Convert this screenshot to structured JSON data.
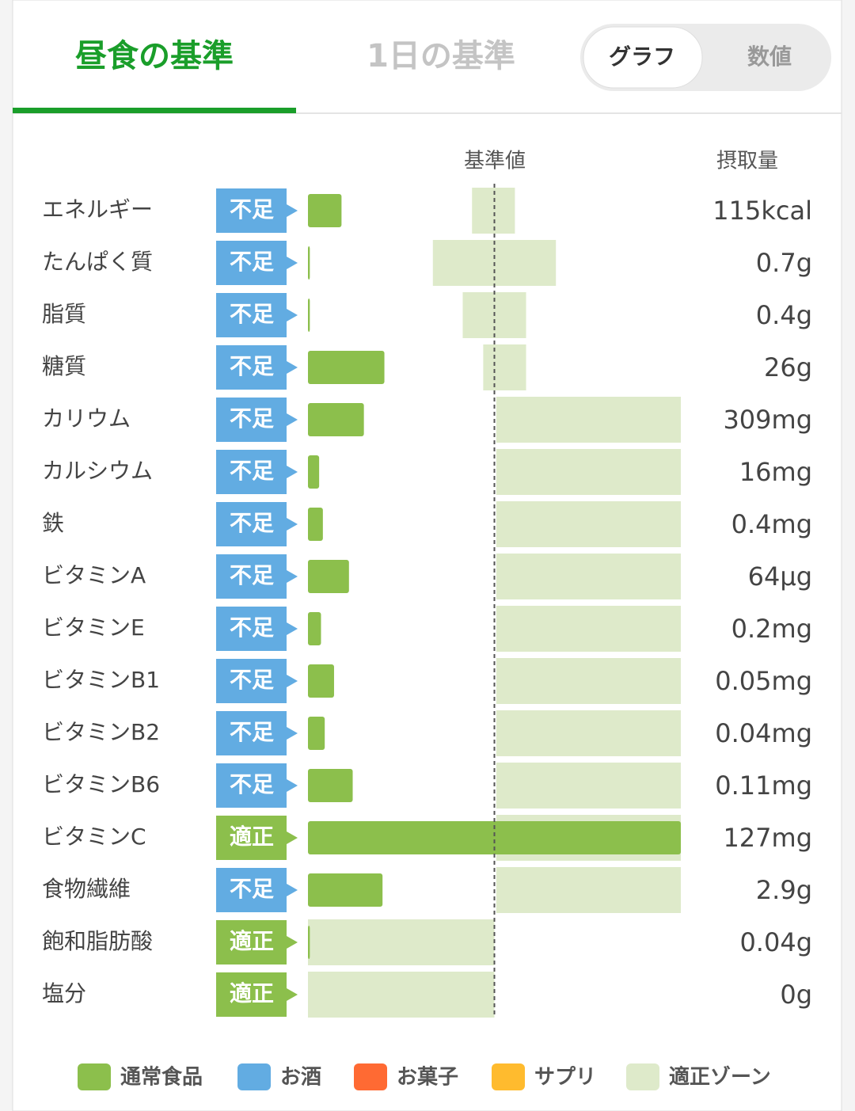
{
  "tabs": [
    "昼食の基準",
    "1日の基準"
  ],
  "toggle": [
    "グラフ",
    "数値"
  ],
  "chart_data": {
    "type": "bar",
    "standard_label": "基準値",
    "intake_label": "摂取量",
    "xlim": [
      0,
      200
    ],
    "standard": 100,
    "bar_color": "#8cbf4c",
    "zone_color": "#deeaca",
    "rows": [
      {
        "name": "エネルギー",
        "status": "不足",
        "status_color": "#62ace2",
        "intake": "115kcal",
        "ratio": 18,
        "zone": [
          88,
          111
        ]
      },
      {
        "name": "たんぱく質",
        "status": "不足",
        "status_color": "#62ace2",
        "intake": "0.7g",
        "ratio": 1,
        "zone": [
          67,
          133
        ]
      },
      {
        "name": "脂質",
        "status": "不足",
        "status_color": "#62ace2",
        "intake": "0.4g",
        "ratio": 1,
        "zone": [
          83,
          117
        ]
      },
      {
        "name": "糖質",
        "status": "不足",
        "status_color": "#62ace2",
        "intake": "26g",
        "ratio": 41,
        "zone": [
          94,
          117
        ]
      },
      {
        "name": "カリウム",
        "status": "不足",
        "status_color": "#62ace2",
        "intake": "309mg",
        "ratio": 30,
        "zone": [
          101,
          200
        ]
      },
      {
        "name": "カルシウム",
        "status": "不足",
        "status_color": "#62ace2",
        "intake": "16mg",
        "ratio": 6,
        "zone": [
          101,
          200
        ]
      },
      {
        "name": "鉄",
        "status": "不足",
        "status_color": "#62ace2",
        "intake": "0.4mg",
        "ratio": 8,
        "zone": [
          101,
          200
        ]
      },
      {
        "name": "ビタミンA",
        "status": "不足",
        "status_color": "#62ace2",
        "intake": "64µg",
        "ratio": 22,
        "zone": [
          101,
          200
        ]
      },
      {
        "name": "ビタミンE",
        "status": "不足",
        "status_color": "#62ace2",
        "intake": "0.2mg",
        "ratio": 7,
        "zone": [
          101,
          200
        ]
      },
      {
        "name": "ビタミンB1",
        "status": "不足",
        "status_color": "#62ace2",
        "intake": "0.05mg",
        "ratio": 14,
        "zone": [
          101,
          200
        ]
      },
      {
        "name": "ビタミンB2",
        "status": "不足",
        "status_color": "#62ace2",
        "intake": "0.04mg",
        "ratio": 9,
        "zone": [
          101,
          200
        ]
      },
      {
        "name": "ビタミンB6",
        "status": "不足",
        "status_color": "#62ace2",
        "intake": "0.11mg",
        "ratio": 24,
        "zone": [
          101,
          200
        ]
      },
      {
        "name": "ビタミンC",
        "status": "適正",
        "status_color": "#8cbf4c",
        "intake": "127mg",
        "ratio": 200,
        "zone": [
          101,
          200
        ]
      },
      {
        "name": "食物繊維",
        "status": "不足",
        "status_color": "#62ace2",
        "intake": "2.9g",
        "ratio": 40,
        "zone": [
          101,
          200
        ]
      },
      {
        "name": "飽和脂肪酸",
        "status": "適正",
        "status_color": "#8cbf4c",
        "intake": "0.04g",
        "ratio": 1,
        "zone": [
          0,
          100
        ]
      },
      {
        "name": "塩分",
        "status": "適正",
        "status_color": "#8cbf4c",
        "intake": "0g",
        "ratio": 0,
        "zone": [
          0,
          100
        ]
      }
    ],
    "legend": [
      {
        "name": "通常食品",
        "color": "#8cbf4c"
      },
      {
        "name": "お酒",
        "color": "#62ace2"
      },
      {
        "name": "お菓子",
        "color": "#ff6a33"
      },
      {
        "name": "サプリ",
        "color": "#ffbb2e"
      },
      {
        "name": "適正ゾーン",
        "color": "#deeaca"
      }
    ]
  }
}
